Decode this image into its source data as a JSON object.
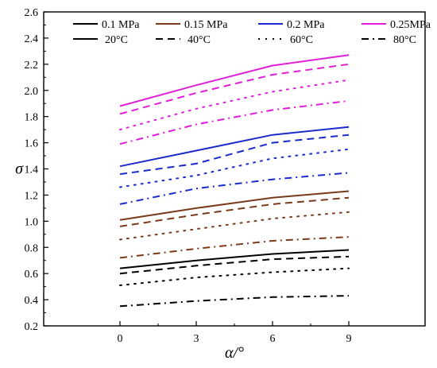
{
  "chart_data": {
    "type": "line",
    "xlabel": "α/°",
    "ylabel": "σ",
    "x": [
      0,
      3,
      6,
      9
    ],
    "xlim": [
      -3,
      12
    ],
    "ylim": [
      0.2,
      2.6
    ],
    "xticks": [
      0,
      3,
      6,
      9
    ],
    "yticks": [
      0.2,
      0.4,
      0.6,
      0.8,
      1.0,
      1.2,
      1.4,
      1.6,
      1.8,
      2.0,
      2.2,
      2.4,
      2.6
    ],
    "grid": false,
    "legend_placement": "top",
    "legend": {
      "pressures": [
        {
          "name": "0.1 MPa",
          "color": "#000000"
        },
        {
          "name": "0.15 MPa",
          "color": "#7a3a1a"
        },
        {
          "name": "0.2 MPa",
          "color": "#1a2bc9"
        },
        {
          "name": "0.25MPa",
          "color": "#e020d8"
        }
      ],
      "temperatures": [
        {
          "name": "20°C",
          "dash": "solid"
        },
        {
          "name": "40°C",
          "dash": "dash"
        },
        {
          "name": "60°C",
          "dash": "dot"
        },
        {
          "name": "80°C",
          "dash": "dashdot"
        }
      ]
    },
    "series": [
      {
        "pressure": "0.1 MPa",
        "temperature": "20°C",
        "values": [
          0.64,
          0.7,
          0.75,
          0.78
        ]
      },
      {
        "pressure": "0.1 MPa",
        "temperature": "40°C",
        "values": [
          0.6,
          0.66,
          0.71,
          0.73
        ]
      },
      {
        "pressure": "0.1 MPa",
        "temperature": "60°C",
        "values": [
          0.51,
          0.57,
          0.61,
          0.64
        ]
      },
      {
        "pressure": "0.1 MPa",
        "temperature": "80°C",
        "values": [
          0.35,
          0.39,
          0.42,
          0.43
        ]
      },
      {
        "pressure": "0.15 MPa",
        "temperature": "20°C",
        "values": [
          1.01,
          1.1,
          1.18,
          1.23
        ]
      },
      {
        "pressure": "0.15 MPa",
        "temperature": "40°C",
        "values": [
          0.96,
          1.05,
          1.13,
          1.18
        ]
      },
      {
        "pressure": "0.15 MPa",
        "temperature": "60°C",
        "values": [
          0.86,
          0.94,
          1.02,
          1.07
        ]
      },
      {
        "pressure": "0.15 MPa",
        "temperature": "80°C",
        "values": [
          0.72,
          0.79,
          0.85,
          0.88
        ]
      },
      {
        "pressure": "0.2 MPa",
        "temperature": "20°C",
        "values": [
          1.42,
          1.54,
          1.66,
          1.72
        ]
      },
      {
        "pressure": "0.2 MPa",
        "temperature": "40°C",
        "values": [
          1.36,
          1.44,
          1.6,
          1.66
        ]
      },
      {
        "pressure": "0.2 MPa",
        "temperature": "60°C",
        "values": [
          1.26,
          1.35,
          1.48,
          1.55
        ]
      },
      {
        "pressure": "0.2 MPa",
        "temperature": "80°C",
        "values": [
          1.13,
          1.25,
          1.32,
          1.37
        ]
      },
      {
        "pressure": "0.25MPa",
        "temperature": "20°C",
        "values": [
          1.88,
          2.04,
          2.19,
          2.27
        ]
      },
      {
        "pressure": "0.25MPa",
        "temperature": "40°C",
        "values": [
          1.82,
          1.98,
          2.12,
          2.2
        ]
      },
      {
        "pressure": "0.25MPa",
        "temperature": "60°C",
        "values": [
          1.7,
          1.86,
          1.99,
          2.08
        ]
      },
      {
        "pressure": "0.25MPa",
        "temperature": "80°C",
        "values": [
          1.59,
          1.74,
          1.85,
          1.92
        ]
      }
    ]
  }
}
